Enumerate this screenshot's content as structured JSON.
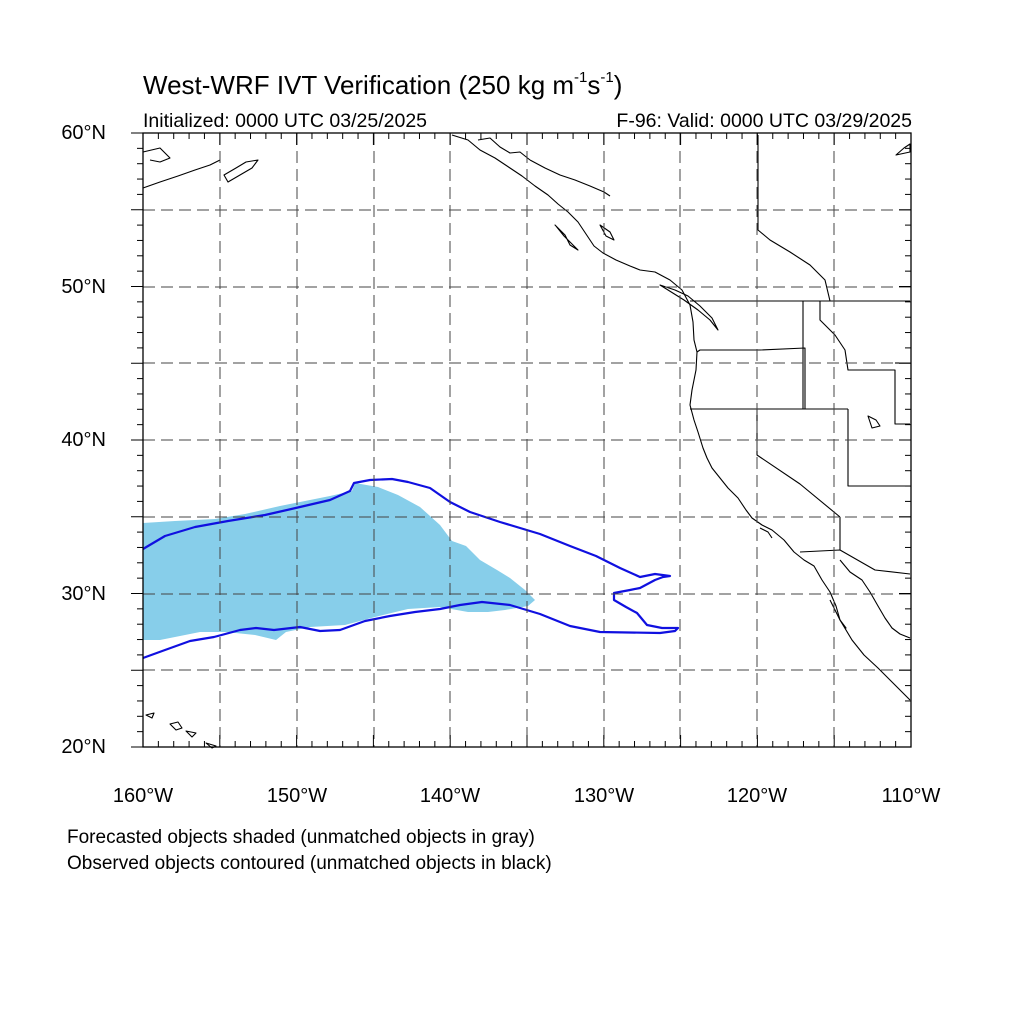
{
  "title": {
    "main": "West-WRF IVT Verification (250 kg m",
    "sup1": "-1",
    "mid": "s",
    "sup2": "-1",
    "end": ")"
  },
  "subtitle_left": "Initialized: 0000 UTC 03/25/2025",
  "subtitle_right": "F-96: Valid: 0000 UTC 03/29/2025",
  "map": {
    "projection": "cylindrical equidistant",
    "lon_range": [
      -160,
      -110
    ],
    "lat_range": [
      20,
      60
    ],
    "grid": "dashed",
    "lat_labels": [
      "60°N",
      "50°N",
      "40°N",
      "30°N",
      "20°N"
    ],
    "lon_labels": [
      "160°W",
      "150°W",
      "140°W",
      "130°W",
      "120°W",
      "110°W"
    ],
    "colors": {
      "forecast_fill": "#87ceea",
      "observed_contour": "#1010e0",
      "coastline": "#000000",
      "grid": "#444444"
    }
  },
  "notes": {
    "line1": "Forecasted objects shaded (unmatched objects in gray)",
    "line2": "Observed objects contoured (unmatched objects in black)"
  }
}
